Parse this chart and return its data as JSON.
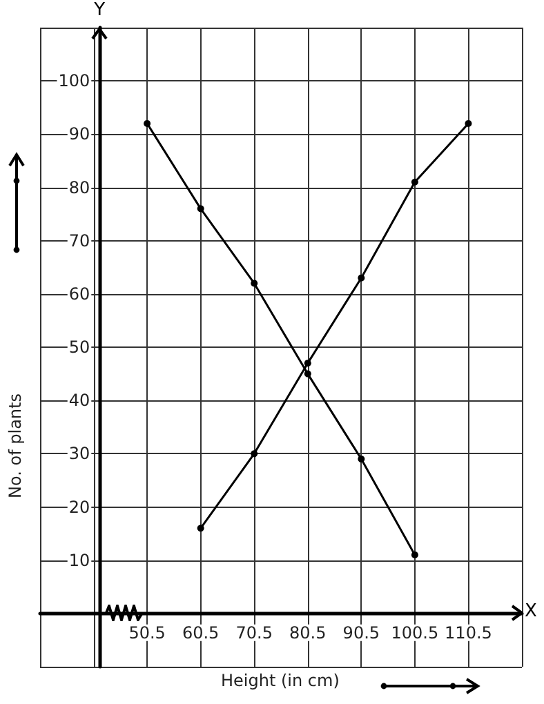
{
  "chart_data": {
    "type": "line",
    "xlabel": "Height (in cm)",
    "ylabel": "No. of plants",
    "annotations": [
      "Y",
      "X"
    ],
    "xlim": [
      30.5,
      120.5
    ],
    "ylim": [
      -10,
      110
    ],
    "xticks": [
      {
        "value": 30.5,
        "label": null
      },
      {
        "value": 40.5,
        "label": null
      },
      50.5,
      60.5,
      70.5,
      80.5,
      90.5,
      100.5,
      110.5,
      {
        "value": 120.5,
        "label": null
      }
    ],
    "yticks": [
      {
        "value": -10,
        "label": null
      },
      {
        "value": 0,
        "label": null
      },
      10,
      20,
      30,
      40,
      50,
      60,
      70,
      80,
      90,
      100,
      {
        "value": 110,
        "label": null
      }
    ],
    "series": [
      {
        "color": "#000000",
        "x": [
          50.5,
          60.5,
          70.5,
          80.5,
          90.5,
          100.5
        ],
        "values": [
          92,
          76,
          62,
          45,
          29,
          11
        ]
      },
      {
        "color": "#000000",
        "x": [
          60.5,
          70.5,
          80.5,
          90.5,
          100.5,
          110.5
        ],
        "values": [
          16,
          30,
          47,
          63,
          81,
          92
        ]
      }
    ],
    "grid": true,
    "marker": "circle",
    "line_style": "solid"
  }
}
